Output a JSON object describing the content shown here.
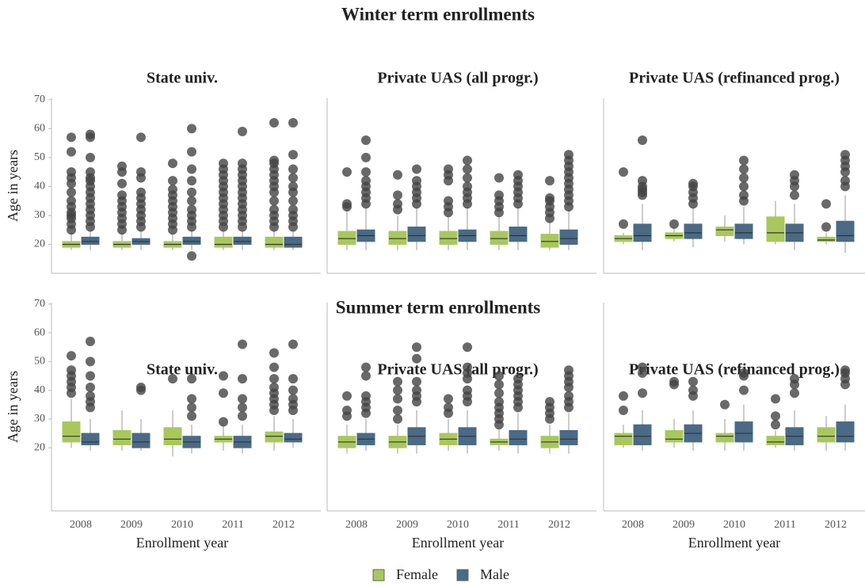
{
  "sections": [
    "Winter term enrollments",
    "Summer term enrollments"
  ],
  "chart_data": [
    {
      "type": "box",
      "title": "State univ.",
      "categories": [
        "2008",
        "2009",
        "2010",
        "2011",
        "2012"
      ],
      "ylim": [
        10,
        70.5
      ],
      "yticks": [
        20,
        30,
        40,
        50,
        60,
        70
      ],
      "y_label": "Age in years",
      "series": [
        {
          "name": "Female",
          "color": "#a8c85c",
          "q1": [
            19,
            19,
            19,
            19,
            19
          ],
          "median": [
            20,
            20,
            20,
            20,
            20
          ],
          "q3": [
            21,
            21,
            21,
            22.5,
            22.5
          ],
          "low": [
            18,
            18,
            18,
            18,
            18
          ],
          "high": [
            24,
            24,
            24,
            25,
            25
          ],
          "outliers": [
            [
              25,
              27,
              29,
              30,
              31,
              33,
              35,
              38,
              41,
              43,
              45,
              52,
              57
            ],
            [
              25,
              27,
              29,
              31,
              33,
              35,
              37,
              41,
              45,
              47
            ],
            [
              25,
              27,
              29,
              31,
              33,
              35,
              37,
              39,
              42,
              48
            ],
            [
              26,
              28,
              30,
              32,
              34,
              36,
              38,
              40,
              42,
              44,
              46,
              48
            ],
            [
              26,
              28,
              30,
              32,
              35,
              38,
              40,
              42,
              44,
              46,
              48,
              49,
              62
            ]
          ]
        },
        {
          "name": "Male",
          "color": "#4a6a85",
          "q1": [
            20,
            20,
            20,
            20,
            19
          ],
          "median": [
            21,
            21,
            21,
            21,
            20
          ],
          "q3": [
            22.5,
            22,
            22.5,
            22.5,
            22.5
          ],
          "low": [
            18,
            18,
            18,
            18,
            18
          ],
          "high": [
            25,
            25,
            25,
            25,
            25
          ],
          "outliers": [
            [
              26,
              28,
              30,
              32,
              34,
              36,
              38,
              40,
              42,
              43,
              45,
              50,
              57,
              58
            ],
            [
              26,
              28,
              30,
              32,
              34,
              36,
              38,
              43,
              45,
              57
            ],
            [
              16,
              26,
              28,
              30,
              32,
              35,
              38,
              42,
              46,
              52,
              60
            ],
            [
              26,
              28,
              30,
              32,
              34,
              36,
              38,
              40,
              42,
              44,
              46,
              48,
              59
            ],
            [
              26,
              28,
              30,
              32,
              35,
              38,
              40,
              43,
              46,
              51,
              62
            ]
          ]
        }
      ]
    },
    {
      "type": "box",
      "title": "Private UAS (all progr.)",
      "categories": [
        "2008",
        "2009",
        "2010",
        "2011",
        "2012"
      ],
      "ylim": [
        10,
        70.5
      ],
      "series": [
        {
          "name": "Female",
          "color": "#a8c85c",
          "q1": [
            20,
            20,
            20,
            20,
            19
          ],
          "median": [
            22,
            22,
            22,
            22,
            21
          ],
          "q3": [
            24.5,
            24.5,
            24.5,
            24.5,
            23.5
          ],
          "low": [
            18,
            18,
            18,
            18,
            18
          ],
          "high": [
            32,
            30,
            30,
            30,
            28
          ],
          "outliers": [
            [
              33,
              34,
              45
            ],
            [
              32,
              34,
              37,
              44
            ],
            [
              31,
              33,
              35,
              42,
              44,
              46
            ],
            [
              31,
              33,
              35,
              37,
              43
            ],
            [
              29,
              31,
              33,
              35,
              36,
              42
            ]
          ]
        },
        {
          "name": "Male",
          "color": "#4a6a85",
          "q1": [
            21,
            21,
            21,
            21,
            20
          ],
          "median": [
            23,
            23,
            23,
            23,
            22
          ],
          "q3": [
            25,
            26,
            25,
            26,
            25
          ],
          "low": [
            18,
            18,
            18,
            18,
            18
          ],
          "high": [
            33,
            33,
            33,
            33,
            32
          ],
          "outliers": [
            [
              34,
              36,
              38,
              40,
              42,
              45,
              50,
              56
            ],
            [
              34,
              36,
              38,
              40,
              42,
              46
            ],
            [
              34,
              36,
              38,
              40,
              43,
              46,
              49
            ],
            [
              34,
              36,
              38,
              40,
              42,
              44
            ],
            [
              33,
              35,
              37,
              39,
              41,
              43,
              45,
              47,
              49,
              51
            ]
          ]
        }
      ]
    },
    {
      "type": "box",
      "title": "Private UAS (refinanced prog.)",
      "categories": [
        "2008",
        "2009",
        "2010",
        "2011",
        "2012"
      ],
      "ylim": [
        10,
        70.5
      ],
      "series": [
        {
          "name": "Female",
          "color": "#a8c85c",
          "q1": [
            21,
            22,
            23,
            21,
            21
          ],
          "median": [
            22,
            23,
            25,
            24,
            21.5
          ],
          "q3": [
            23,
            24,
            26,
            29.5,
            22.5
          ],
          "low": [
            20,
            21,
            21,
            20,
            20
          ],
          "high": [
            24,
            26,
            30,
            35,
            24
          ],
          "outliers": [
            [
              27,
              45
            ],
            [
              27
            ],
            [],
            [],
            [
              26,
              34
            ]
          ]
        },
        {
          "name": "Male",
          "color": "#4a6a85",
          "q1": [
            21,
            22,
            22,
            21,
            21
          ],
          "median": [
            23,
            24,
            24,
            24,
            23
          ],
          "q3": [
            27,
            27,
            27,
            27,
            28
          ],
          "low": [
            18,
            19,
            20,
            18,
            17
          ],
          "high": [
            34,
            33,
            33,
            34,
            37
          ],
          "outliers": [
            [
              37,
              38,
              39,
              40,
              42,
              56
            ],
            [
              34,
              36,
              38,
              40,
              41
            ],
            [
              35,
              37,
              40,
              43,
              46,
              49
            ],
            [
              37,
              40,
              42,
              44
            ],
            [
              40,
              42,
              45,
              47,
              49,
              51
            ]
          ]
        }
      ]
    },
    {
      "type": "box",
      "title": "State univ.",
      "categories": [
        "2008",
        "2009",
        "2010",
        "2011",
        "2012"
      ],
      "ylim": [
        -2,
        70.5
      ],
      "yticks": [
        20,
        30,
        40,
        50,
        60,
        70
      ],
      "y_label": "Age in years",
      "x_label": "Enrollment year",
      "series": [
        {
          "name": "Female",
          "color": "#a8c85c",
          "q1": [
            22,
            21,
            21,
            22,
            22
          ],
          "median": [
            24,
            23,
            23,
            23,
            24
          ],
          "q3": [
            29,
            26,
            27,
            24,
            25.5
          ],
          "low": [
            20,
            19,
            17,
            19,
            19
          ],
          "high": [
            37,
            33,
            33,
            28,
            31
          ],
          "outliers": [
            [
              39,
              41,
              43,
              45,
              47,
              52
            ],
            [],
            [
              44
            ],
            [
              29,
              39,
              45
            ],
            [
              33,
              35,
              37,
              39,
              41,
              44,
              48,
              53
            ]
          ]
        },
        {
          "name": "Male",
          "color": "#4a6a85",
          "q1": [
            21,
            20,
            20,
            20,
            22
          ],
          "median": [
            22,
            22,
            22,
            22,
            23
          ],
          "q3": [
            25,
            25,
            24,
            24,
            25
          ],
          "low": [
            19,
            19,
            18,
            18,
            20
          ],
          "high": [
            30,
            30,
            28,
            28,
            30
          ],
          "outliers": [
            [
              34,
              36,
              38,
              41,
              45,
              50,
              57
            ],
            [
              40,
              41
            ],
            [
              31,
              34,
              37,
              44
            ],
            [
              31,
              34,
              37,
              44,
              56
            ],
            [
              33,
              35,
              37,
              40,
              44,
              56
            ]
          ]
        }
      ]
    },
    {
      "type": "box",
      "title": "Private UAS (all progr.)",
      "categories": [
        "2008",
        "2009",
        "2010",
        "2011",
        "2012"
      ],
      "ylim": [
        -2,
        70.5
      ],
      "x_label": "Enrollment year",
      "series": [
        {
          "name": "Female",
          "color": "#a8c85c",
          "q1": [
            20,
            20,
            21,
            21,
            20
          ],
          "median": [
            22,
            22,
            23,
            22,
            22
          ],
          "q3": [
            24,
            24,
            25,
            23,
            24
          ],
          "low": [
            18,
            18,
            19,
            19,
            18
          ],
          "high": [
            28,
            28,
            30,
            27,
            28
          ],
          "outliers": [
            [
              31,
              33,
              38
            ],
            [
              30,
              33,
              37,
              40,
              43
            ],
            [
              32,
              34,
              37
            ],
            [
              28,
              30,
              32,
              34,
              36,
              39,
              42,
              45
            ],
            [
              30,
              32,
              34,
              36
            ]
          ]
        },
        {
          "name": "Male",
          "color": "#4a6a85",
          "q1": [
            21,
            21,
            21,
            21,
            21
          ],
          "median": [
            23,
            24,
            24,
            23,
            23
          ],
          "q3": [
            25,
            27,
            27,
            26,
            26
          ],
          "low": [
            19,
            18,
            18,
            18,
            18
          ],
          "high": [
            30,
            33,
            33,
            32,
            32
          ],
          "outliers": [
            [
              32,
              34,
              36,
              38,
              45,
              48
            ],
            [
              36,
              38,
              40,
              43,
              51,
              55
            ],
            [
              36,
              38,
              40,
              44,
              46,
              48,
              55
            ],
            [
              34,
              36,
              38,
              40,
              42,
              44
            ],
            [
              34,
              36,
              38,
              41,
              43,
              45,
              47
            ]
          ]
        }
      ]
    },
    {
      "type": "box",
      "title": "Private UAS (refinanced prog.)",
      "categories": [
        "2008",
        "2009",
        "2010",
        "2011",
        "2012"
      ],
      "ylim": [
        -2,
        70.5
      ],
      "x_label": "Enrollment year",
      "series": [
        {
          "name": "Female",
          "color": "#a8c85c",
          "q1": [
            21,
            22,
            22,
            21,
            22
          ],
          "median": [
            24,
            23,
            24,
            22,
            24
          ],
          "q3": [
            25,
            26,
            25,
            24,
            27
          ],
          "low": [
            20,
            20,
            19,
            20,
            19
          ],
          "high": [
            28,
            30,
            30,
            26,
            31
          ],
          "outliers": [
            [
              33,
              38
            ],
            [
              42,
              43
            ],
            [
              35
            ],
            [
              28,
              31,
              37
            ],
            []
          ]
        },
        {
          "name": "Male",
          "color": "#4a6a85",
          "q1": [
            21,
            22,
            22,
            21,
            22
          ],
          "median": [
            24,
            25,
            25,
            24,
            24
          ],
          "q3": [
            28,
            28,
            29,
            27,
            29
          ],
          "low": [
            19,
            19,
            19,
            19,
            19
          ],
          "high": [
            33,
            33,
            35,
            33,
            35
          ],
          "outliers": [
            [
              39,
              46,
              48
            ],
            [
              38,
              40,
              43
            ],
            [
              40,
              45,
              46
            ],
            [
              39,
              42,
              44
            ],
            [
              42,
              44,
              46,
              47
            ]
          ]
        }
      ]
    }
  ]
}
